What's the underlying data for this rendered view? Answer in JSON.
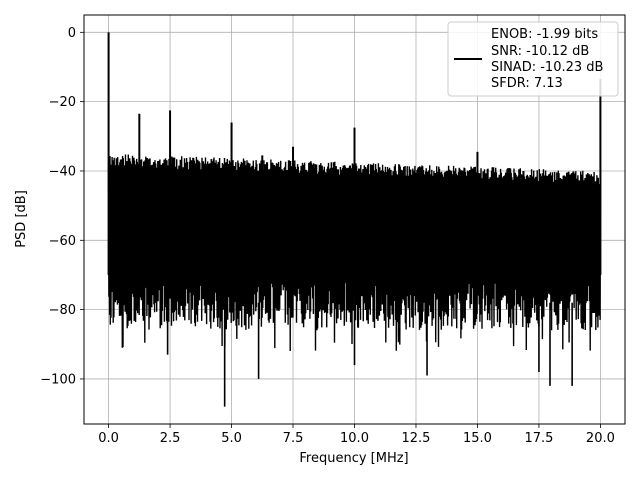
{
  "chart_data": {
    "type": "line",
    "title": "",
    "xlabel": "Frequency [MHz]",
    "ylabel": "PSD [dB]",
    "xlim": [
      -1.0,
      21.0
    ],
    "ylim": [
      -113,
      5
    ],
    "xticks": [
      0.0,
      2.5,
      5.0,
      7.5,
      10.0,
      12.5,
      15.0,
      17.5,
      20.0
    ],
    "xtick_labels": [
      "0.0",
      "2.5",
      "5.0",
      "7.5",
      "10.0",
      "12.5",
      "15.0",
      "17.5",
      "20.0"
    ],
    "yticks": [
      0,
      -20,
      -40,
      -60,
      -80,
      -100
    ],
    "ytick_labels": [
      "0",
      "−20",
      "−40",
      "−60",
      "−80",
      "−100"
    ],
    "grid": true,
    "legend_position": "top-right",
    "legend_entries": [
      "ENOB: -1.99 bits",
      "SNR: -10.12 dB",
      "SINAD: -10.23 dB",
      "SFDR: 7.13"
    ],
    "series": [
      {
        "color": "#000000",
        "spectrum": {
          "x_start": 0.0,
          "x_end": 20.0,
          "noise_upper_start": -35,
          "noise_upper_end": -40,
          "noise_lower_typical": -80,
          "noise_lower_min": -108
        },
        "peaks": [
          {
            "x": 0.0,
            "y": 0.0
          },
          {
            "x": 1.25,
            "y": -23.5
          },
          {
            "x": 2.5,
            "y": -22.5
          },
          {
            "x": 5.0,
            "y": -26.0
          },
          {
            "x": 6.25,
            "y": -35.5
          },
          {
            "x": 7.5,
            "y": -33.0
          },
          {
            "x": 10.0,
            "y": -27.5
          },
          {
            "x": 15.0,
            "y": -34.5
          },
          {
            "x": 20.0,
            "y": -13.5
          }
        ],
        "dips": [
          {
            "x": 4.72,
            "y": -108
          },
          {
            "x": 6.1,
            "y": -100
          },
          {
            "x": 17.5,
            "y": -98
          },
          {
            "x": 17.95,
            "y": -102
          },
          {
            "x": 18.85,
            "y": -102
          },
          {
            "x": 12.95,
            "y": -99
          },
          {
            "x": 2.4,
            "y": -93
          },
          {
            "x": 10.0,
            "y": -96
          }
        ]
      }
    ]
  }
}
